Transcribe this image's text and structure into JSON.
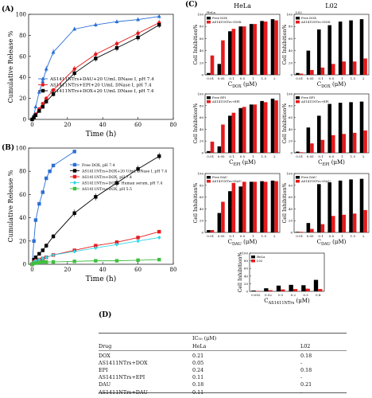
{
  "panel_labels": {
    "A": "(A)",
    "B": "(B)",
    "C": "(C)",
    "D": "(D)"
  },
  "colors": {
    "free_drug": "#000000",
    "conjugate": "#e41a1c",
    "blue": "#2b6fd6",
    "cyan": "#33d6e6",
    "green": "#3fbf3f"
  },
  "chart_data": [
    {
      "id": "A",
      "type": "line",
      "xlabel": "Time (h)",
      "ylabel": "Cumulative Release %",
      "xlim": [
        -2,
        80
      ],
      "ylim": [
        0,
        100
      ],
      "xticks": [
        0,
        20,
        40,
        60,
        80
      ],
      "yticks": [
        0,
        20,
        40,
        60,
        80,
        100
      ],
      "legend_position": "center-right",
      "series": [
        {
          "name": "AS1411NTrs+DAU+20 U/mL DNase I, pH 7.4",
          "color": "#2b6fd6",
          "marker": "triangle",
          "x": [
            0,
            1,
            2,
            4,
            6,
            8,
            12,
            24,
            36,
            48,
            60,
            72
          ],
          "y": [
            0,
            4,
            12,
            26,
            36,
            48,
            64,
            86,
            90,
            93,
            95,
            98
          ],
          "err": [
            0,
            1,
            1.5,
            2,
            2.5,
            3,
            3,
            2,
            2,
            2,
            2,
            2
          ]
        },
        {
          "name": "AS1411NTrs+EPI+20 U/mL DNase I, pH 7.4",
          "color": "#e41a1c",
          "marker": "circle",
          "x": [
            0,
            1,
            2,
            4,
            6,
            8,
            12,
            24,
            36,
            48,
            60,
            72
          ],
          "y": [
            0,
            2,
            5,
            10,
            15,
            20,
            28,
            48,
            62,
            72,
            82,
            92
          ],
          "err": [
            0,
            1,
            1,
            1.5,
            1.5,
            2,
            2,
            3,
            3,
            3,
            3,
            3
          ]
        },
        {
          "name": "AS1411NTrs+DOX+20 U/mL DNase I, pH 7.4",
          "color": "#000000",
          "marker": "square",
          "x": [
            0,
            1,
            2,
            4,
            6,
            8,
            12,
            24,
            36,
            48,
            60,
            72
          ],
          "y": [
            0,
            2,
            4,
            8,
            12,
            17,
            24,
            44,
            58,
            68,
            78,
            90
          ],
          "err": [
            0,
            1,
            1,
            1.5,
            1.5,
            2,
            2,
            3,
            3,
            3,
            3,
            3
          ]
        }
      ]
    },
    {
      "id": "B",
      "type": "line",
      "xlabel": "Time (h)",
      "ylabel": "Cumulative Release %",
      "xlim": [
        -2,
        80
      ],
      "ylim": [
        0,
        100
      ],
      "xticks": [
        0,
        20,
        40,
        60,
        80
      ],
      "yticks": [
        0,
        20,
        40,
        60,
        80,
        100
      ],
      "legend_position": "top-center",
      "series": [
        {
          "name": "Free DOX, pH 7.4",
          "color": "#2b6fd6",
          "marker": "square",
          "x": [
            0,
            1,
            2,
            4,
            6,
            8,
            10,
            12,
            24
          ],
          "y": [
            0,
            20,
            38,
            52,
            62,
            74,
            80,
            85,
            97
          ]
        },
        {
          "name": "AS1411NTrs+DOX+20 U/mL DNase I, pH 7.4",
          "color": "#000000",
          "marker": "square",
          "x": [
            0,
            1,
            2,
            4,
            6,
            8,
            12,
            24,
            36,
            48,
            60,
            72
          ],
          "y": [
            0,
            4,
            6,
            9,
            12,
            16,
            24,
            44,
            58,
            70,
            82,
            93
          ],
          "err": [
            0,
            1,
            1,
            1.5,
            1.5,
            2,
            2,
            3,
            3,
            3,
            3,
            3
          ]
        },
        {
          "name": "AS1411NTrs+DOX, pH 7.4",
          "color": "#e41a1c",
          "marker": "square",
          "x": [
            0,
            1,
            2,
            4,
            6,
            8,
            12,
            24,
            36,
            48,
            60,
            72
          ],
          "y": [
            0,
            2,
            3,
            4,
            5,
            6,
            8,
            12,
            16,
            19,
            23,
            28
          ]
        },
        {
          "name": "AS1411NTrs+DOX+ Human serum, pH 7.4",
          "color": "#33d6e6",
          "marker": "diamond",
          "x": [
            0,
            1,
            2,
            4,
            6,
            8,
            12,
            24,
            36,
            48,
            60,
            72
          ],
          "y": [
            0,
            2,
            3,
            4,
            5,
            6,
            8,
            11,
            14,
            17,
            20,
            23
          ]
        },
        {
          "name": "AS1411NTrs+DOX, pH 5.5",
          "color": "#3fbf3f",
          "marker": "square",
          "x": [
            0,
            1,
            2,
            4,
            6,
            8,
            12,
            24,
            36,
            48,
            60,
            72
          ],
          "y": [
            0,
            1,
            1,
            1.5,
            2,
            2,
            2,
            2.5,
            3,
            3,
            3.5,
            4
          ]
        }
      ]
    },
    {
      "id": "C1",
      "type": "bar",
      "title": "HeLa",
      "xlabel": "C_DOX (μM)",
      "ylabel": "Cell Inhibition%",
      "categories": [
        "0.01",
        "0.05",
        "0.1",
        "0.5",
        "1",
        "1.5",
        "2"
      ],
      "ylim": [
        0,
        100
      ],
      "yticks": [
        0,
        20,
        40,
        60,
        80,
        100
      ],
      "series": [
        {
          "name": "Free DOX",
          "color": "#000000",
          "values": [
            3,
            18,
            72,
            80,
            84,
            89,
            92
          ]
        },
        {
          "name": "AS1411NTrs+DOX",
          "color": "#e41a1c",
          "values": [
            32,
            57,
            76,
            80,
            84,
            88,
            90
          ]
        }
      ]
    },
    {
      "id": "C2",
      "type": "bar",
      "title": "L02",
      "xlabel": "C_DOX (μM)",
      "ylabel": "Cell Inhibition%",
      "categories": [
        "0.01",
        "0.05",
        "0.1",
        "0.5",
        "1",
        "1.5",
        "2"
      ],
      "ylim": [
        0,
        100
      ],
      "yticks": [
        0,
        20,
        40,
        60,
        80,
        100
      ],
      "series": [
        {
          "name": "Free DOX",
          "color": "#000000",
          "values": [
            3,
            40,
            75,
            82,
            88,
            90,
            92
          ]
        },
        {
          "name": "AS1411NTrs+DOX",
          "color": "#e41a1c",
          "values": [
            2,
            8,
            12,
            18,
            22,
            22,
            27
          ]
        }
      ]
    },
    {
      "id": "C3",
      "type": "bar",
      "title": "",
      "xlabel": "C_EPI (μM)",
      "ylabel": "Cell Inhibition%",
      "categories": [
        "0.01",
        "0.05",
        "0.1",
        "0.5",
        "1",
        "1.5",
        "2"
      ],
      "ylim": [
        0,
        100
      ],
      "yticks": [
        0,
        20,
        40,
        60,
        80,
        100
      ],
      "series": [
        {
          "name": "Free EPI",
          "color": "#000000",
          "values": [
            3,
            11,
            63,
            76,
            82,
            88,
            92
          ]
        },
        {
          "name": "AS1411NTrs+EPI",
          "color": "#e41a1c",
          "values": [
            19,
            48,
            68,
            78,
            82,
            86,
            89
          ]
        }
      ]
    },
    {
      "id": "C4",
      "type": "bar",
      "title": "",
      "xlabel": "C_EPI (μM)",
      "ylabel": "Cell Inhibition%",
      "categories": [
        "0.01",
        "0.05",
        "0.1",
        "0.5",
        "1",
        "1.5",
        "2"
      ],
      "ylim": [
        0,
        100
      ],
      "yticks": [
        0,
        20,
        40,
        60,
        80,
        100
      ],
      "series": [
        {
          "name": "Free EPI",
          "color": "#000000",
          "values": [
            2,
            43,
            63,
            83,
            85,
            86,
            87
          ]
        },
        {
          "name": "AS1411NTrs+EPI",
          "color": "#e41a1c",
          "values": [
            1,
            16,
            22,
            30,
            32,
            34,
            38
          ]
        }
      ]
    },
    {
      "id": "C5",
      "type": "bar",
      "title": "",
      "xlabel": "C_DAU (μM)",
      "ylabel": "Cell Inhibition%",
      "categories": [
        "0.01",
        "0.05",
        "0.1",
        "0.5",
        "1",
        "1.5",
        "2"
      ],
      "ylim": [
        0,
        100
      ],
      "yticks": [
        0,
        20,
        40,
        60,
        80,
        100
      ],
      "series": [
        {
          "name": "Free DAU",
          "color": "#000000",
          "values": [
            4,
            33,
            70,
            78,
            86,
            87,
            88
          ]
        },
        {
          "name": "AS1411NTrs+DAU",
          "color": "#e41a1c",
          "values": [
            4,
            52,
            84,
            86,
            86,
            86,
            87
          ]
        }
      ]
    },
    {
      "id": "C6",
      "type": "bar",
      "title": "",
      "xlabel": "C_DAU (μM)",
      "ylabel": "Cell Inhibition%",
      "categories": [
        "0.01",
        "0.05",
        "0.1",
        "0.5",
        "1",
        "1.5",
        "2"
      ],
      "ylim": [
        0,
        100
      ],
      "yticks": [
        0,
        20,
        40,
        60,
        80,
        100
      ],
      "series": [
        {
          "name": "Free DAU",
          "color": "#000000",
          "values": [
            1,
            16,
            82,
            85,
            88,
            90,
            91
          ]
        },
        {
          "name": "AS1411NTrs+DAU",
          "color": "#e41a1c",
          "values": [
            1,
            6,
            14,
            28,
            30,
            32,
            38
          ]
        }
      ]
    },
    {
      "id": "C7",
      "type": "bar",
      "title": "",
      "xlabel": "C_AS1411NTrs (μM)",
      "ylabel": "Cell Inhibition%",
      "categories": [
        "0.002",
        "0.02",
        "0.1",
        "0.2",
        "0.3",
        "0.4"
      ],
      "ylim": [
        0,
        100
      ],
      "yticks": [
        0,
        20,
        40,
        60,
        80,
        100
      ],
      "series": [
        {
          "name": "HeLa",
          "color": "#000000",
          "values": [
            2,
            8,
            15,
            17,
            16,
            30
          ]
        },
        {
          "name": "L02",
          "color": "#e41a1c",
          "values": [
            1,
            3,
            5,
            6,
            7,
            6
          ]
        }
      ]
    }
  ],
  "table": {
    "header_col1": "Drug",
    "header_col2_line1": "IC₅₀ (μM)",
    "header_col2_line2": "HeLa",
    "header_col3": "L02",
    "rows": [
      {
        "drug": "DOX",
        "hela": "0.21",
        "l02": "0.18"
      },
      {
        "drug": "AS1411NTrs+DOX",
        "hela": "0.05",
        "l02": "-"
      },
      {
        "drug": "EPI",
        "hela": "0.24",
        "l02": "0.18"
      },
      {
        "drug": "AS1411NTrs+EPI",
        "hela": "0.11",
        "l02": "-"
      },
      {
        "drug": "DAU",
        "hela": "0.18",
        "l02": "0.21"
      },
      {
        "drug": "AS1411NTrs+DAU",
        "hela": "0.11",
        "l02": "-"
      }
    ]
  }
}
